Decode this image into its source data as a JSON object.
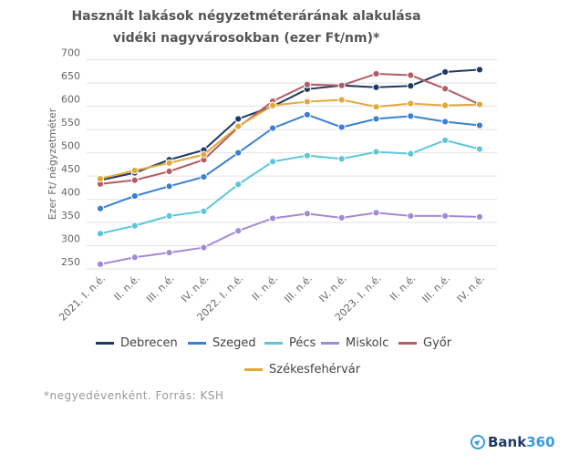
{
  "chart_data": {
    "type": "line",
    "title": "Használt lakások négyzetméterárának alakulása vidéki nagyvárosokban (ezer Ft/nm)*",
    "ylabel": "Ezer Ft/ négyzetméter",
    "xlabel": "",
    "ylim": [
      250,
      700
    ],
    "yticks": [
      250,
      300,
      350,
      400,
      450,
      500,
      550,
      600,
      650,
      700
    ],
    "grid": true,
    "legend_position": "bottom",
    "categories": [
      "2021. I. n.é.",
      "II. n.é.",
      "III. n.é.",
      "IV. n.é.",
      "2022. I. n.é.",
      "II. n.é.",
      "III. n.é.",
      "IV. n.é.",
      "2023. I. n.é.",
      "II. n.é.",
      "III. n.é.",
      "IV. n.é."
    ],
    "series": [
      {
        "name": "Debrecen",
        "color": "#1d3a66",
        "values": [
          441,
          457,
          485,
          506,
          573,
          600,
          637,
          645,
          641,
          644,
          674,
          679
        ]
      },
      {
        "name": "Szeged",
        "color": "#3a80d4",
        "values": [
          380,
          407,
          428,
          448,
          500,
          553,
          582,
          555,
          573,
          579,
          567,
          559
        ]
      },
      {
        "name": "Pécs",
        "color": "#5cc6dc",
        "values": [
          326,
          343,
          364,
          374,
          432,
          481,
          494,
          487,
          502,
          498,
          527,
          508
        ]
      },
      {
        "name": "Miskolc",
        "color": "#a48ad6",
        "values": [
          260,
          275,
          285,
          296,
          332,
          359,
          369,
          360,
          371,
          364,
          364,
          362
        ]
      },
      {
        "name": "Győr",
        "color": "#b35c63",
        "values": [
          433,
          441,
          460,
          485,
          555,
          611,
          647,
          645,
          670,
          667,
          638,
          604
        ]
      },
      {
        "name": "Székesfehérvár",
        "color": "#e2a83a",
        "values": [
          444,
          462,
          478,
          496,
          557,
          602,
          610,
          614,
          599,
          606,
          602,
          604
        ]
      }
    ]
  },
  "footnote": "*negyedévenként. Forrás: KSH",
  "logo": {
    "text_a": "Bank",
    "text_b": "360",
    "color": "#1d3a66",
    "accent": "#3a9ae0"
  }
}
